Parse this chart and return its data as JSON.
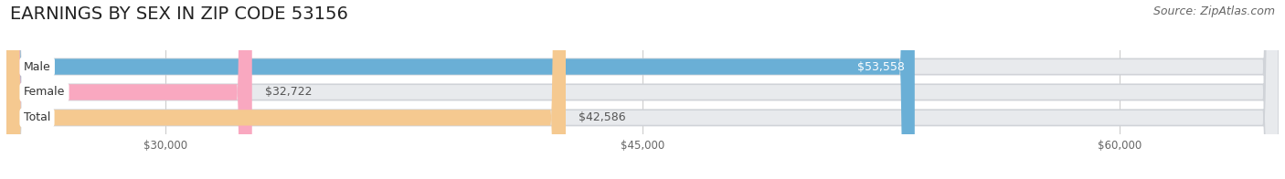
{
  "title": "EARNINGS BY SEX IN ZIP CODE 53156",
  "source": "Source: ZipAtlas.com",
  "categories": [
    "Male",
    "Female",
    "Total"
  ],
  "values": [
    53558,
    32722,
    42586
  ],
  "bar_colors": [
    "#6aafd6",
    "#f9a8c0",
    "#f5c990"
  ],
  "value_inside": [
    true,
    false,
    false
  ],
  "xlim_min": 25000,
  "xlim_max": 65000,
  "xticks": [
    30000,
    45000,
    60000
  ],
  "xtick_labels": [
    "$30,000",
    "$45,000",
    "$60,000"
  ],
  "bar_height": 0.62,
  "figsize": [
    14.06,
    1.96
  ],
  "dpi": 100,
  "bg_color": "#ffffff",
  "bar_bg_color": "#e8eaed",
  "title_fontsize": 14,
  "source_fontsize": 9,
  "label_fontsize": 9,
  "value_fontsize": 9
}
